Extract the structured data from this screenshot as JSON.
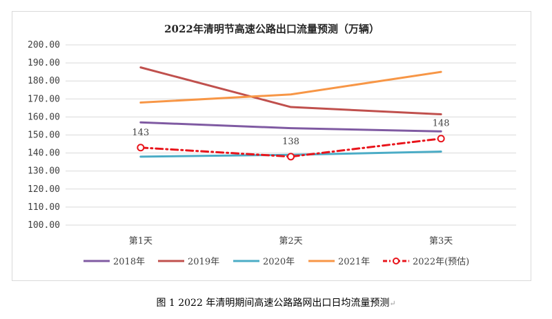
{
  "chart_data": {
    "type": "line",
    "title": "2022年清明节高速公路出口流量预测（万辆）",
    "categories": [
      "第1天",
      "第2天",
      "第3天"
    ],
    "ylim": [
      100,
      200
    ],
    "yticks": [
      "200.00",
      "190.00",
      "180.00",
      "170.00",
      "160.00",
      "150.00",
      "140.00",
      "130.00",
      "120.00",
      "110.00",
      "100.00"
    ],
    "grid": true,
    "legend_position": "bottom",
    "series": [
      {
        "name": "2018年",
        "values": [
          157,
          153.8,
          152
        ],
        "color": "#7f5aa2",
        "style": "solid"
      },
      {
        "name": "2019年",
        "values": [
          187.5,
          165.5,
          161.5
        ],
        "color": "#c0504d",
        "style": "solid"
      },
      {
        "name": "2020年",
        "values": [
          138,
          139,
          140.8
        ],
        "color": "#4bacc6",
        "style": "solid"
      },
      {
        "name": "2021年",
        "values": [
          168,
          172.5,
          185
        ],
        "color": "#f79646",
        "style": "solid"
      },
      {
        "name": "2022年(预估)",
        "values": [
          143,
          138,
          148
        ],
        "color": "#e8141b",
        "style": "dashdot",
        "markers": true,
        "data_labels": [
          "143",
          "138",
          "148"
        ]
      }
    ]
  },
  "caption": {
    "text": "图 1   2022 年清明期间高速公路路网出口日均流量预测",
    "mark": "↵"
  }
}
